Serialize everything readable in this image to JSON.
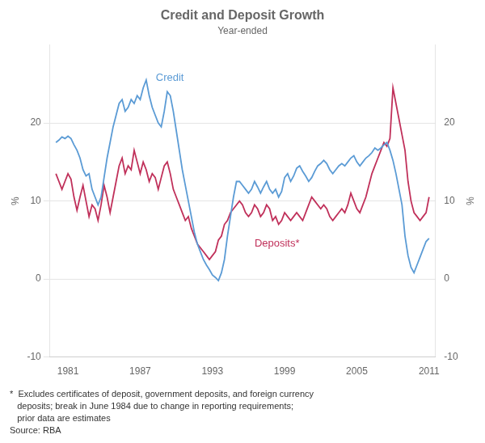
{
  "chart_data": {
    "type": "line",
    "title": "Credit and Deposit Growth",
    "subtitle": "Year-ended",
    "y_label": "%",
    "y2_label": "%",
    "xlim": [
      1979.5,
      2011.5
    ],
    "xticks": [
      1981,
      1987,
      1993,
      1999,
      2005,
      2011
    ],
    "ylim": [
      -10,
      30
    ],
    "yticks": [
      -10,
      0,
      10,
      20
    ],
    "y2lim": [
      -10,
      30
    ],
    "y2ticks": [
      -10,
      0,
      10,
      20
    ],
    "grid": true,
    "x": [
      1980.0,
      1980.25,
      1980.5,
      1980.75,
      1981.0,
      1981.25,
      1981.5,
      1981.75,
      1982.0,
      1982.25,
      1982.5,
      1982.75,
      1983.0,
      1983.25,
      1983.5,
      1983.75,
      1984.0,
      1984.25,
      1984.5,
      1984.75,
      1985.0,
      1985.25,
      1985.5,
      1985.75,
      1986.0,
      1986.25,
      1986.5,
      1986.75,
      1987.0,
      1987.25,
      1987.5,
      1987.75,
      1988.0,
      1988.25,
      1988.5,
      1988.75,
      1989.0,
      1989.25,
      1989.5,
      1989.75,
      1990.0,
      1990.25,
      1990.5,
      1990.75,
      1991.0,
      1991.25,
      1991.5,
      1991.75,
      1992.0,
      1992.25,
      1992.5,
      1992.75,
      1993.0,
      1993.25,
      1993.5,
      1993.75,
      1994.0,
      1994.25,
      1994.5,
      1994.75,
      1995.0,
      1995.25,
      1995.5,
      1995.75,
      1996.0,
      1996.25,
      1996.5,
      1996.75,
      1997.0,
      1997.25,
      1997.5,
      1997.75,
      1998.0,
      1998.25,
      1998.5,
      1998.75,
      1999.0,
      1999.25,
      1999.5,
      1999.75,
      2000.0,
      2000.25,
      2000.5,
      2000.75,
      2001.0,
      2001.25,
      2001.5,
      2001.75,
      2002.0,
      2002.25,
      2002.5,
      2002.75,
      2003.0,
      2003.25,
      2003.5,
      2003.75,
      2004.0,
      2004.25,
      2004.5,
      2004.75,
      2005.0,
      2005.25,
      2005.5,
      2005.75,
      2006.0,
      2006.25,
      2006.5,
      2006.75,
      2007.0,
      2007.25,
      2007.5,
      2007.75,
      2008.0,
      2008.25,
      2008.5,
      2008.75,
      2009.0,
      2009.25,
      2009.5,
      2009.75,
      2010.0,
      2010.25,
      2010.5,
      2010.75,
      2011.0
    ],
    "series": [
      {
        "name": "Credit",
        "color": "#5b9bd5",
        "values": [
          17.5,
          17.8,
          18.2,
          18.0,
          18.3,
          18.0,
          17.2,
          16.5,
          15.5,
          14.0,
          13.2,
          13.5,
          11.5,
          10.5,
          9.5,
          10.5,
          13.0,
          15.5,
          17.5,
          19.5,
          21.0,
          22.5,
          23.0,
          21.5,
          22.0,
          23.0,
          22.5,
          23.5,
          23.0,
          24.5,
          25.5,
          23.5,
          22.0,
          21.0,
          20.0,
          19.5,
          21.5,
          24.0,
          23.5,
          21.5,
          19.0,
          16.5,
          14.0,
          12.0,
          10.0,
          8.0,
          6.0,
          4.5,
          3.5,
          2.5,
          1.8,
          1.2,
          0.5,
          0.2,
          -0.2,
          0.8,
          2.5,
          5.5,
          8.0,
          10.5,
          12.5,
          12.5,
          12.0,
          11.5,
          11.0,
          11.5,
          12.5,
          11.8,
          11.0,
          11.8,
          12.5,
          11.5,
          11.0,
          11.5,
          10.5,
          11.2,
          13.0,
          13.5,
          12.5,
          13.2,
          14.2,
          14.5,
          13.8,
          13.2,
          12.5,
          13.0,
          13.8,
          14.5,
          14.8,
          15.2,
          14.8,
          14.0,
          13.5,
          14.0,
          14.5,
          14.8,
          14.5,
          15.0,
          15.5,
          15.8,
          15.0,
          14.5,
          15.0,
          15.5,
          15.8,
          16.2,
          16.8,
          16.5,
          16.8,
          17.2,
          17.5,
          16.5,
          15.2,
          13.5,
          11.5,
          9.5,
          5.5,
          3.0,
          1.5,
          0.8,
          1.8,
          2.8,
          3.8,
          4.8,
          5.2
        ]
      },
      {
        "name": "Deposits*",
        "color": "#c0305a",
        "values": [
          13.5,
          12.5,
          11.5,
          12.5,
          13.5,
          12.8,
          10.5,
          8.8,
          10.5,
          12.0,
          10.0,
          8.0,
          9.5,
          9.0,
          7.5,
          9.5,
          12.0,
          10.5,
          8.5,
          10.5,
          12.5,
          14.5,
          15.5,
          13.5,
          14.5,
          14.0,
          16.5,
          15.0,
          13.5,
          15.0,
          14.0,
          12.5,
          13.5,
          13.0,
          11.5,
          13.0,
          14.5,
          15.0,
          13.5,
          11.5,
          10.5,
          9.5,
          8.5,
          7.5,
          8.0,
          6.5,
          5.5,
          4.5,
          4.0,
          3.5,
          3.0,
          2.5,
          3.0,
          3.5,
          5.0,
          5.5,
          7.0,
          7.5,
          8.5,
          9.0,
          9.5,
          10.0,
          9.5,
          8.5,
          8.0,
          8.5,
          9.5,
          9.0,
          8.0,
          8.5,
          9.5,
          9.0,
          7.5,
          8.0,
          7.0,
          7.5,
          8.5,
          8.0,
          7.5,
          8.0,
          8.5,
          8.0,
          7.5,
          8.5,
          9.5,
          10.5,
          10.0,
          9.5,
          9.0,
          9.5,
          9.0,
          8.0,
          7.5,
          8.0,
          8.5,
          9.0,
          8.5,
          9.5,
          11.0,
          10.0,
          9.0,
          8.5,
          9.5,
          10.5,
          12.0,
          13.5,
          14.5,
          15.5,
          16.5,
          17.5,
          17.0,
          18.0,
          24.5,
          22.5,
          20.5,
          18.5,
          16.5,
          12.5,
          10.0,
          8.5,
          8.0,
          7.5,
          8.0,
          8.5,
          10.5
        ]
      }
    ],
    "annotations": [
      {
        "text": "Credit",
        "x": 1988.3,
        "y": 25.8,
        "color": "#5b9bd5"
      },
      {
        "text": "Deposits*",
        "x": 1996.5,
        "y": 4.5,
        "color": "#c0305a"
      }
    ],
    "footnote": [
      "*  Excludes certificates of deposit, government deposits, and foreign currency",
      "   deposits; break in June 1984 due to change in reporting requirements;",
      "   prior data are estimates",
      "Source: RBA"
    ]
  }
}
